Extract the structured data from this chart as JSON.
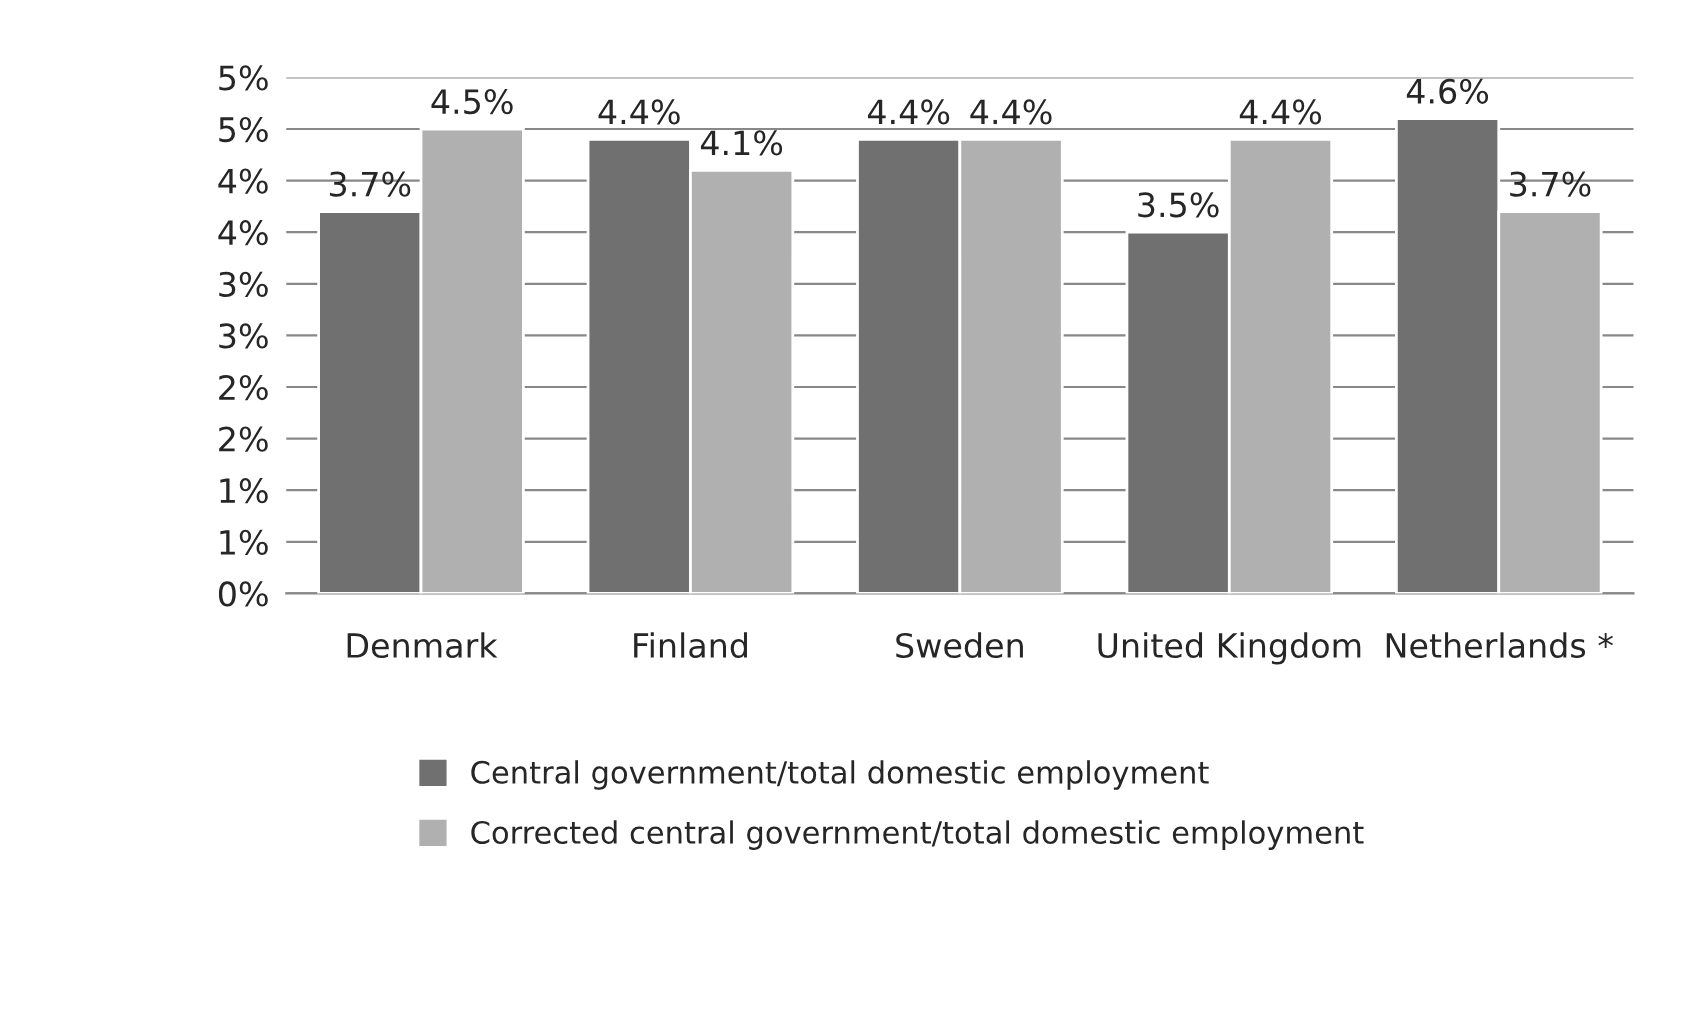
{
  "chart_data": {
    "type": "bar",
    "categories": [
      "Denmark",
      "Finland",
      "Sweden",
      "United Kingdom",
      "Netherlands *"
    ],
    "series": [
      {
        "name": "Central government/total domestic employment",
        "color": "#707070",
        "values": [
          3.7,
          4.4,
          4.4,
          3.5,
          4.6
        ],
        "value_labels": [
          "3.7%",
          "4.4%",
          "4.4%",
          "3.5%",
          "4.6%"
        ]
      },
      {
        "name": "Corrected central government/total domestic employment",
        "color": "#b0b0b0",
        "values": [
          4.5,
          4.1,
          4.4,
          4.4,
          3.7
        ],
        "value_labels": [
          "4.5%",
          "4.1%",
          "4.4%",
          "4.4%",
          "3.7%"
        ]
      }
    ],
    "ylim": [
      0,
      5
    ],
    "yticks": [
      {
        "value": 0,
        "label": "0%"
      },
      {
        "value": 0.5,
        "label": "1%"
      },
      {
        "value": 1,
        "label": "1%"
      },
      {
        "value": 1.5,
        "label": "2%"
      },
      {
        "value": 2,
        "label": "2%"
      },
      {
        "value": 2.5,
        "label": "3%"
      },
      {
        "value": 3,
        "label": "3%"
      },
      {
        "value": 3.5,
        "label": "4%"
      },
      {
        "value": 4,
        "label": "4%"
      },
      {
        "value": 4.5,
        "label": "5%"
      },
      {
        "value": 5,
        "label": "5%"
      }
    ],
    "grid": "y",
    "legend": "bottom"
  }
}
